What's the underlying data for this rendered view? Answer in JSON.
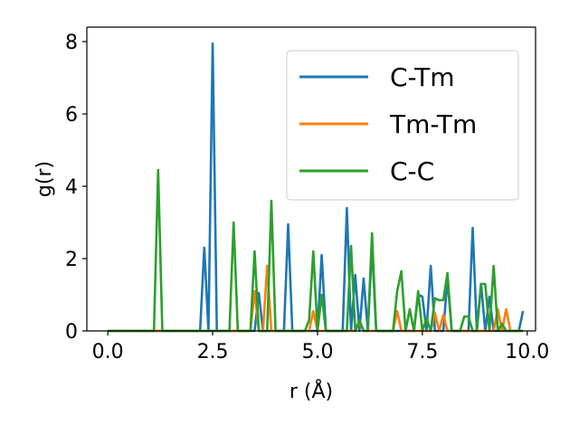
{
  "chart_data": {
    "type": "line",
    "title": "",
    "xlabel": "r (Å)",
    "ylabel": "g(r)",
    "xlim": [
      -0.5,
      10.2
    ],
    "ylim": [
      0,
      8.4
    ],
    "xticks": [
      0.0,
      2.5,
      5.0,
      7.5,
      10.0
    ],
    "xtick_labels": [
      "0.0",
      "2.5",
      "5.0",
      "7.5",
      "10.0"
    ],
    "yticks": [
      0,
      2,
      4,
      6,
      8
    ],
    "ytick_labels": [
      "0",
      "2",
      "4",
      "6",
      "8"
    ],
    "grid": false,
    "legend_position": "top-right",
    "x": [
      0.0,
      0.1,
      0.2,
      0.3,
      0.4,
      0.5,
      0.6,
      0.7,
      0.8,
      0.9,
      1.0,
      1.1,
      1.2,
      1.3,
      1.4,
      1.5,
      1.6,
      1.7,
      1.8,
      1.9,
      2.0,
      2.1,
      2.2,
      2.3,
      2.4,
      2.5,
      2.6,
      2.7,
      2.8,
      2.9,
      3.0,
      3.1,
      3.2,
      3.3,
      3.4,
      3.5,
      3.6,
      3.7,
      3.8,
      3.9,
      4.0,
      4.1,
      4.2,
      4.3,
      4.4,
      4.5,
      4.6,
      4.7,
      4.8,
      4.9,
      5.0,
      5.1,
      5.2,
      5.3,
      5.4,
      5.5,
      5.6,
      5.7,
      5.8,
      5.9,
      6.0,
      6.1,
      6.2,
      6.3,
      6.4,
      6.5,
      6.6,
      6.7,
      6.8,
      6.9,
      7.0,
      7.1,
      7.2,
      7.3,
      7.4,
      7.5,
      7.6,
      7.7,
      7.8,
      7.9,
      8.0,
      8.1,
      8.2,
      8.3,
      8.4,
      8.5,
      8.6,
      8.7,
      8.8,
      8.9,
      9.0,
      9.1,
      9.2,
      9.3,
      9.4,
      9.5,
      9.6,
      9.7,
      9.8,
      9.9
    ],
    "series": [
      {
        "name": "C-Tm",
        "color": "#1f77b4",
        "values": [
          0,
          0,
          0,
          0,
          0,
          0,
          0,
          0,
          0,
          0,
          0,
          0,
          0,
          0,
          0,
          0,
          0,
          0,
          0,
          0,
          0,
          0,
          0,
          2.3,
          0,
          7.95,
          0,
          0,
          0,
          0,
          0,
          0,
          0,
          0,
          0,
          0,
          1.05,
          0,
          0,
          0,
          0,
          0,
          0,
          2.95,
          0,
          0,
          0,
          0,
          0,
          0,
          0,
          2.1,
          0,
          0,
          0,
          0,
          0,
          3.4,
          0,
          1.55,
          0,
          1.45,
          0,
          2.35,
          0,
          0,
          0,
          0,
          0,
          0,
          0,
          0,
          0,
          0,
          1.0,
          0.95,
          0,
          1.8,
          0,
          0,
          0,
          1.45,
          0,
          0,
          0,
          0,
          0,
          2.85,
          0,
          1.3,
          0,
          0.95,
          0,
          0,
          0,
          0,
          0,
          0,
          0,
          0.55
        ]
      },
      {
        "name": "Tm-Tm",
        "color": "#ff7f0e",
        "values": [
          0,
          0,
          0,
          0,
          0,
          0,
          0,
          0,
          0,
          0,
          0,
          0,
          0,
          0,
          0,
          0,
          0,
          0,
          0,
          0,
          0,
          0,
          0,
          0,
          0,
          0,
          0,
          0,
          0,
          0,
          0,
          0,
          0,
          0,
          0,
          1.1,
          0,
          0,
          1.8,
          0,
          0,
          0,
          0,
          0,
          0,
          0,
          0,
          0,
          0,
          0.55,
          0,
          0,
          0,
          0,
          0,
          0,
          0,
          0,
          0,
          0,
          0.25,
          0,
          0,
          0,
          0,
          0,
          0,
          0,
          0,
          0.55,
          0,
          0,
          0,
          0,
          0,
          0,
          0,
          0,
          0.5,
          0,
          0.45,
          0,
          0,
          0,
          0,
          0,
          0,
          0,
          0,
          0,
          0,
          0,
          0,
          0.6,
          0,
          0.6,
          0,
          0,
          0,
          0
        ]
      },
      {
        "name": "C-C",
        "color": "#2ca02c",
        "values": [
          0,
          0,
          0,
          0,
          0,
          0,
          0,
          0,
          0,
          0,
          0,
          0,
          4.45,
          0,
          0,
          0,
          0,
          0,
          0,
          0,
          0,
          0,
          0,
          0,
          0,
          0,
          0,
          0,
          0,
          0,
          3.0,
          0,
          0,
          0,
          0,
          2.2,
          0,
          0,
          0,
          3.6,
          0,
          0,
          0,
          0,
          0,
          0,
          0,
          0,
          0.3,
          2.2,
          0,
          1.0,
          0,
          0,
          0,
          0,
          0,
          0,
          2.35,
          0,
          0.3,
          0,
          0,
          2.7,
          0,
          0,
          0,
          0,
          0,
          1.1,
          1.65,
          0,
          0.6,
          0,
          1.1,
          0,
          0.35,
          0,
          0.9,
          0.85,
          0.85,
          1.6,
          0,
          0,
          0,
          0.4,
          0.4,
          0,
          0,
          1.3,
          1.3,
          0,
          1.8,
          0,
          0.2,
          0,
          0,
          0,
          0,
          0
        ]
      }
    ]
  }
}
